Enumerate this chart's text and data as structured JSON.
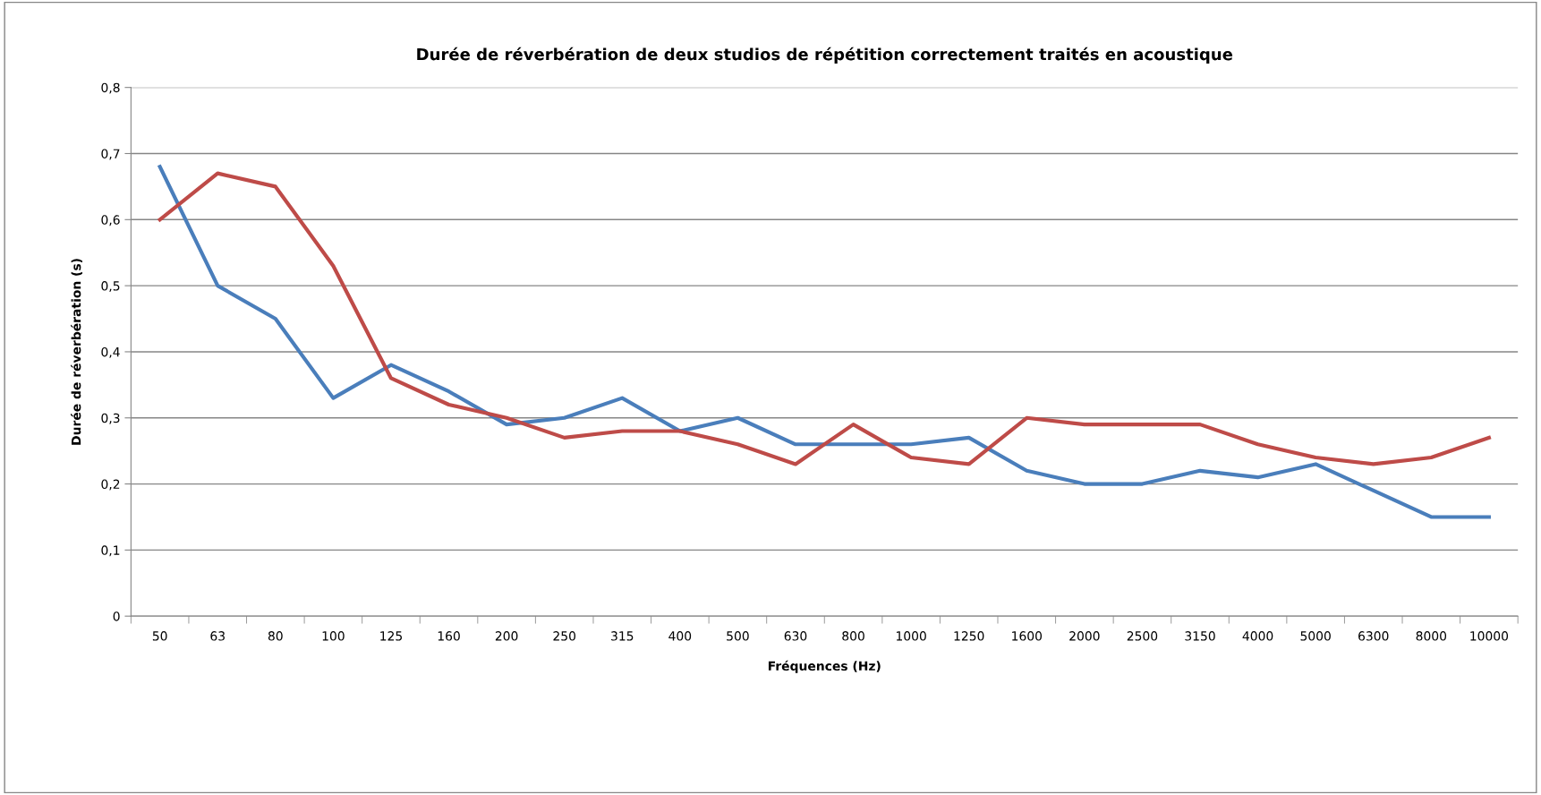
{
  "chart_data": {
    "type": "line",
    "title": "Durée de réverbération de deux studios de répétition correctement traités en acoustique",
    "xlabel": "Fréquences (Hz)",
    "ylabel": "Durée de réverbération (s)",
    "categories": [
      "50",
      "63",
      "80",
      "100",
      "125",
      "160",
      "200",
      "250",
      "315",
      "400",
      "500",
      "630",
      "800",
      "1000",
      "1250",
      "1600",
      "2000",
      "2500",
      "3150",
      "4000",
      "5000",
      "6300",
      "8000",
      "10000"
    ],
    "series": [
      {
        "color": "#4a7ebb",
        "values": [
          0.68,
          0.5,
          0.45,
          0.33,
          0.38,
          0.34,
          0.29,
          0.3,
          0.33,
          0.28,
          0.3,
          0.26,
          0.26,
          0.26,
          0.27,
          0.22,
          0.2,
          0.2,
          0.22,
          0.21,
          0.23,
          0.19,
          0.15,
          0.15
        ]
      },
      {
        "color": "#be4b48",
        "values": [
          0.6,
          0.67,
          0.65,
          0.53,
          0.36,
          0.32,
          0.3,
          0.27,
          0.28,
          0.28,
          0.26,
          0.23,
          0.29,
          0.24,
          0.23,
          0.3,
          0.29,
          0.29,
          0.29,
          0.26,
          0.24,
          0.23,
          0.24,
          0.27
        ]
      }
    ],
    "ylim": [
      0,
      0.8
    ],
    "yticks": [
      {
        "value": 0,
        "label": "0"
      },
      {
        "value": 0.1,
        "label": "0,1"
      },
      {
        "value": 0.2,
        "label": "0,2"
      },
      {
        "value": 0.3,
        "label": "0,3"
      },
      {
        "value": 0.4,
        "label": "0,4"
      },
      {
        "value": 0.5,
        "label": "0,5"
      },
      {
        "value": 0.6,
        "label": "0,6"
      },
      {
        "value": 0.7,
        "label": "0,7"
      },
      {
        "value": 0.8,
        "label": "0,8"
      }
    ],
    "grid": "y",
    "legend": false,
    "marker": "none",
    "line_style": "solid"
  }
}
